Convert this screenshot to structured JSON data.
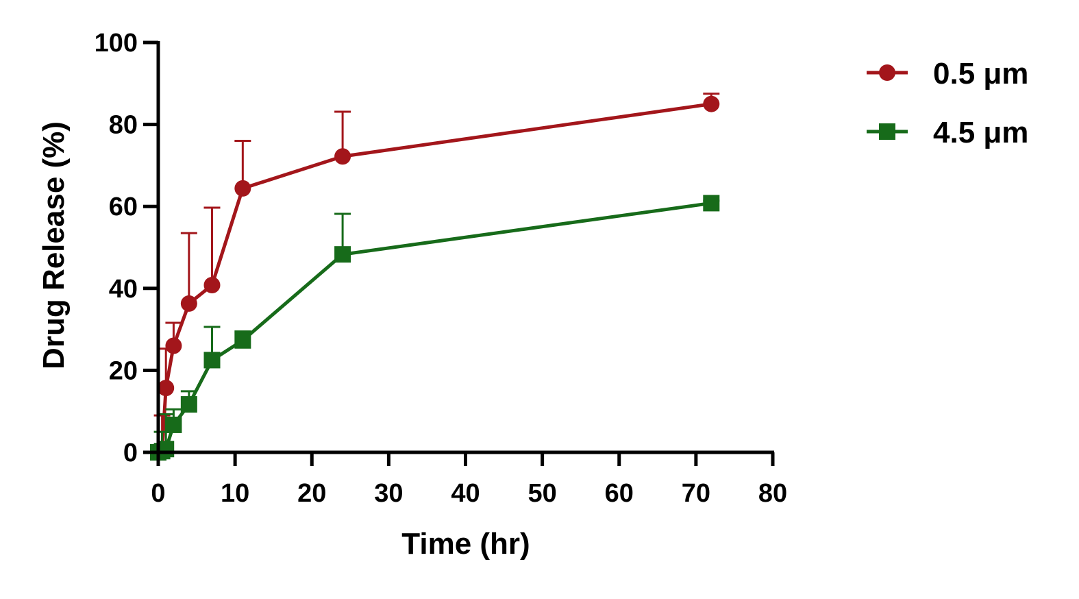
{
  "chart_data": {
    "type": "line",
    "xlabel": "Time (hr)",
    "ylabel": "Drug Release (%)",
    "xlim": [
      0,
      80
    ],
    "ylim": [
      0,
      100
    ],
    "xticks": [
      0,
      10,
      20,
      30,
      40,
      50,
      60,
      70,
      80
    ],
    "yticks": [
      0,
      20,
      40,
      60,
      80,
      100
    ],
    "grid": false,
    "legend_position": "top-right",
    "series": [
      {
        "name": "0.5 μm",
        "color": "#a3161b",
        "marker": "circle",
        "x": [
          0,
          0.5,
          1,
          2,
          4,
          7,
          11,
          24,
          72
        ],
        "y": [
          0,
          0.5,
          15.7,
          26,
          36.3,
          40.8,
          64.4,
          72.2,
          85
        ],
        "error": [
          0,
          8.5,
          9.6,
          5.6,
          17.2,
          18.9,
          11.6,
          10.9,
          2.5
        ]
      },
      {
        "name": "4.5 μm",
        "color": "#176b1a",
        "marker": "square",
        "x": [
          0,
          0.5,
          1,
          2,
          4,
          7,
          11,
          24,
          72
        ],
        "y": [
          0,
          0.3,
          0.8,
          6.7,
          11.7,
          22.5,
          27.3,
          48.3,
          60.8
        ],
        "error": [
          0,
          4.7,
          8.5,
          3.8,
          3.2,
          8.1,
          2.2,
          9.9,
          0.6
        ]
      }
    ]
  }
}
